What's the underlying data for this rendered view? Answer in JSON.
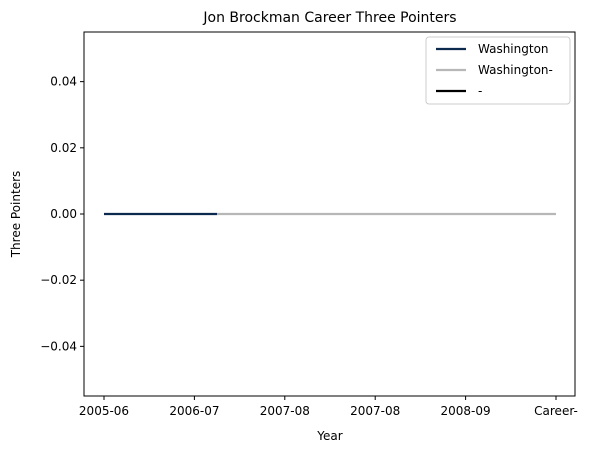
{
  "chart_data": {
    "type": "line",
    "title": "Jon Brockman Career Three Pointers",
    "xlabel": "Year",
    "ylabel": "Three Pointers",
    "x_categories": [
      "2005-06",
      "2006-07",
      "2007-08",
      "2007-08",
      "2008-09",
      "Career-"
    ],
    "ylim": [
      -0.055,
      0.055
    ],
    "yticks": [
      "0.04",
      "0.02",
      "0.00",
      "−0.02",
      "−0.04"
    ],
    "ytick_values": [
      0.04,
      0.02,
      0.0,
      -0.02,
      -0.04
    ],
    "grid": false,
    "legend_position": "top-right",
    "series": [
      {
        "name": "Washington",
        "color": "#0b2a4e",
        "x": [
          0,
          1.25
        ],
        "y": [
          0,
          0
        ]
      },
      {
        "name": "Washington-",
        "color": "#b7b7b7",
        "x": [
          1.25,
          5
        ],
        "y": [
          0,
          0
        ]
      },
      {
        "name": "-",
        "color": "#000000",
        "x": [],
        "y": []
      }
    ]
  }
}
